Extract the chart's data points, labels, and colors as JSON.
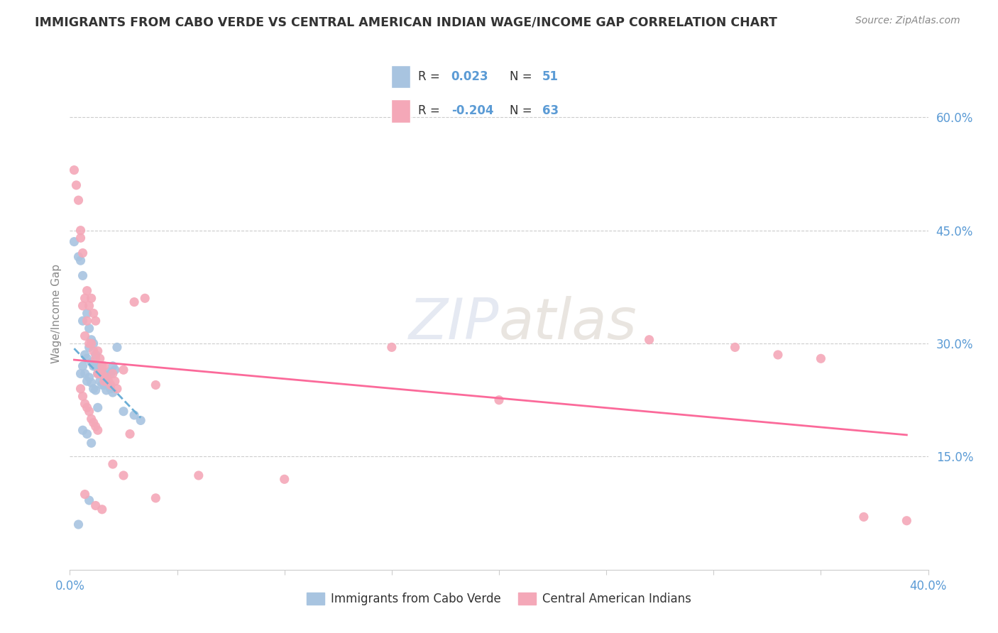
{
  "title": "IMMIGRANTS FROM CABO VERDE VS CENTRAL AMERICAN INDIAN WAGE/INCOME GAP CORRELATION CHART",
  "source": "Source: ZipAtlas.com",
  "ylabel": "Wage/Income Gap",
  "yticks": [
    "60.0%",
    "45.0%",
    "30.0%",
    "15.0%"
  ],
  "ytick_vals": [
    0.6,
    0.45,
    0.3,
    0.15
  ],
  "xlim": [
    0.0,
    0.4
  ],
  "ylim": [
    0.0,
    0.68
  ],
  "legend_label1": "Immigrants from Cabo Verde",
  "legend_label2": "Central American Indians",
  "R1": "0.023",
  "N1": 51,
  "R2": "-0.204",
  "N2": 63,
  "color1": "#a8c4e0",
  "color2": "#f4a8b8",
  "line_color1": "#6baed6",
  "line_color2": "#fb6a9a",
  "cabo_verde_x": [
    0.002,
    0.004,
    0.005,
    0.005,
    0.006,
    0.006,
    0.006,
    0.007,
    0.007,
    0.008,
    0.008,
    0.008,
    0.009,
    0.009,
    0.009,
    0.01,
    0.01,
    0.01,
    0.011,
    0.011,
    0.011,
    0.012,
    0.012,
    0.012,
    0.013,
    0.013,
    0.014,
    0.014,
    0.015,
    0.015,
    0.016,
    0.016,
    0.017,
    0.017,
    0.018,
    0.018,
    0.019,
    0.019,
    0.02,
    0.02,
    0.021,
    0.022,
    0.013,
    0.025,
    0.03,
    0.033,
    0.008,
    0.009,
    0.01,
    0.006,
    0.004
  ],
  "cabo_verde_y": [
    0.435,
    0.415,
    0.41,
    0.26,
    0.39,
    0.33,
    0.27,
    0.285,
    0.26,
    0.28,
    0.34,
    0.25,
    0.32,
    0.295,
    0.255,
    0.305,
    0.275,
    0.248,
    0.27,
    0.3,
    0.24,
    0.27,
    0.285,
    0.238,
    0.268,
    0.26,
    0.265,
    0.25,
    0.262,
    0.245,
    0.258,
    0.245,
    0.255,
    0.238,
    0.262,
    0.245,
    0.26,
    0.24,
    0.27,
    0.235,
    0.265,
    0.295,
    0.215,
    0.21,
    0.205,
    0.198,
    0.18,
    0.092,
    0.168,
    0.185,
    0.06
  ],
  "central_american_x": [
    0.002,
    0.003,
    0.004,
    0.005,
    0.005,
    0.006,
    0.006,
    0.007,
    0.007,
    0.008,
    0.008,
    0.009,
    0.009,
    0.01,
    0.01,
    0.011,
    0.011,
    0.012,
    0.012,
    0.013,
    0.013,
    0.014,
    0.014,
    0.015,
    0.015,
    0.016,
    0.016,
    0.017,
    0.018,
    0.019,
    0.02,
    0.021,
    0.022,
    0.025,
    0.028,
    0.03,
    0.035,
    0.04,
    0.005,
    0.006,
    0.007,
    0.008,
    0.009,
    0.01,
    0.011,
    0.012,
    0.013,
    0.27,
    0.31,
    0.33,
    0.35,
    0.37,
    0.39,
    0.02,
    0.025,
    0.04,
    0.06,
    0.1,
    0.15,
    0.2,
    0.007,
    0.012,
    0.015
  ],
  "central_american_y": [
    0.53,
    0.51,
    0.49,
    0.45,
    0.44,
    0.42,
    0.35,
    0.36,
    0.31,
    0.33,
    0.37,
    0.35,
    0.3,
    0.36,
    0.3,
    0.34,
    0.29,
    0.33,
    0.28,
    0.29,
    0.26,
    0.28,
    0.26,
    0.27,
    0.26,
    0.27,
    0.25,
    0.255,
    0.25,
    0.245,
    0.26,
    0.25,
    0.24,
    0.265,
    0.18,
    0.355,
    0.36,
    0.245,
    0.24,
    0.23,
    0.22,
    0.215,
    0.21,
    0.2,
    0.195,
    0.19,
    0.185,
    0.305,
    0.295,
    0.285,
    0.28,
    0.07,
    0.065,
    0.14,
    0.125,
    0.095,
    0.125,
    0.12,
    0.295,
    0.225,
    0.1,
    0.085,
    0.08
  ]
}
